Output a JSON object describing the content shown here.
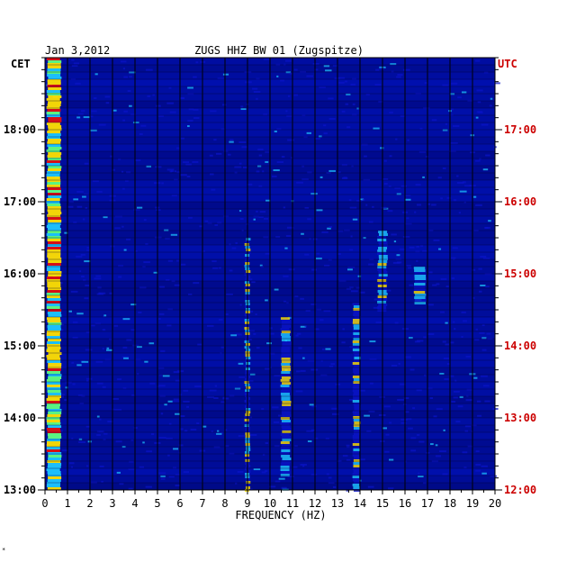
{
  "chart_data": {
    "type": "heatmap",
    "title": "ZUGS HHZ BW 01 (Zugspitze)",
    "date": "Jan 3,2012",
    "xlabel": "FREQUENCY (HZ)",
    "xlim": [
      0,
      20
    ],
    "x_ticks": [
      "0",
      "1",
      "2",
      "3",
      "4",
      "5",
      "6",
      "7",
      "8",
      "9",
      "10",
      "11",
      "12",
      "13",
      "14",
      "15",
      "16",
      "17",
      "18",
      "19",
      "20"
    ],
    "left_axis_label": "CET",
    "right_axis_label": "UTC",
    "cet_hours_range": [
      13,
      19
    ],
    "cet_tick_labels": [
      {
        "hours": 18,
        "label": "18:00"
      },
      {
        "hours": 17,
        "label": "17:00"
      },
      {
        "hours": 16,
        "label": "16:00"
      },
      {
        "hours": 15,
        "label": "15:00"
      },
      {
        "hours": 14,
        "label": "14:00"
      },
      {
        "hours": 13,
        "label": "13:00"
      }
    ],
    "utc_tick_labels": [
      {
        "hours": 18,
        "label": "17:00"
      },
      {
        "hours": 17,
        "label": "16:00"
      },
      {
        "hours": 16,
        "label": "15:00"
      },
      {
        "hours": 15,
        "label": "14:00"
      },
      {
        "hours": 14,
        "label": "13:00"
      },
      {
        "hours": 13,
        "label": "12:00"
      }
    ],
    "grid": true,
    "colors": {
      "background": "#00009c",
      "low": "#0a14c8",
      "mid": "#1ec8ff",
      "high": "#ffe000",
      "peak": "#e01010",
      "grid": "#000000",
      "utc_text": "#cc0000"
    },
    "spectral_features": [
      {
        "label": "strong low-frequency band",
        "f_min": 0.1,
        "f_max": 0.7,
        "t_min": 13.0,
        "t_max": 19.0
      },
      {
        "label": "line ~10.7 Hz",
        "f_min": 10.5,
        "f_max": 10.9,
        "t_min": 13.2,
        "t_max": 15.4
      },
      {
        "label": "line ~13.9 Hz",
        "f_min": 13.7,
        "f_max": 14.0,
        "t_min": 13.0,
        "t_max": 15.6
      },
      {
        "label": "line ~9.0 Hz",
        "f_min": 8.9,
        "f_max": 9.1,
        "t_min": 13.0,
        "t_max": 16.5
      },
      {
        "label": "patch ~15 Hz",
        "f_min": 14.8,
        "f_max": 15.2,
        "t_min": 15.5,
        "t_max": 16.6
      },
      {
        "label": "patch ~16.7 Hz",
        "f_min": 16.4,
        "f_max": 16.9,
        "t_min": 15.6,
        "t_max": 16.1
      }
    ]
  },
  "footnote": "*"
}
